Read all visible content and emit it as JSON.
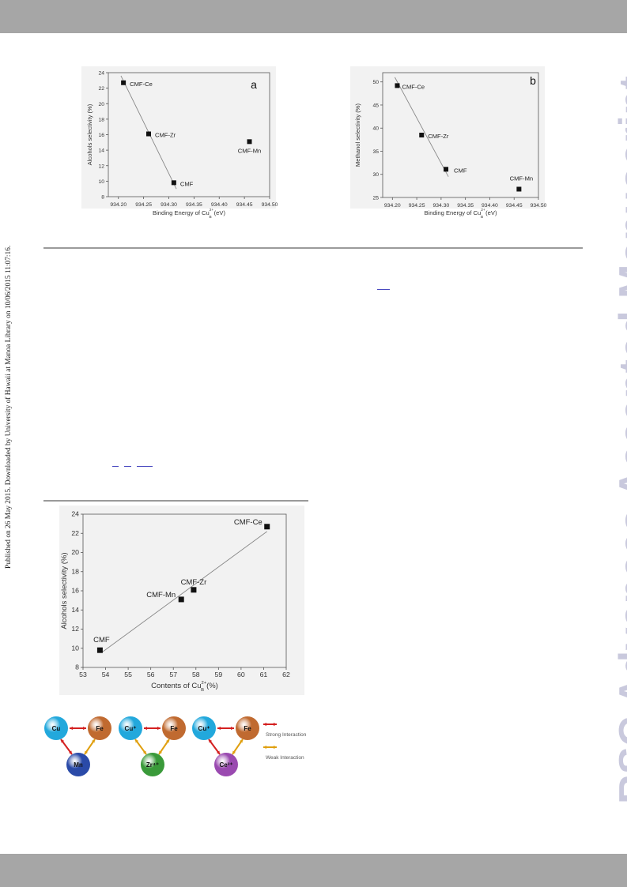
{
  "header_bar": "",
  "side_note": "Published on 26 May 2015. Downloaded by University of Hawaii at Manoa Library on 10/06/2015 11:07:16.",
  "watermark": "RSC Advances Accepted Manuscript",
  "colors": {
    "bars": "#a6a6a6",
    "watermark": "#c9c9dd",
    "strong_interaction": "#d42020",
    "weak_interaction": "#e0a010"
  },
  "chart_data": [
    {
      "type": "scatter",
      "panel_label": "a",
      "xlabel": "Binding Energy of Cu",
      "xlabel_sup": "2+",
      "xlabel_sub": "B",
      "xlabel_unit": "(eV)",
      "ylabel": "Alcohols selectivity (%)",
      "xlim": [
        934.18,
        934.5
      ],
      "ylim": [
        8,
        24
      ],
      "xticks": [
        "934.20",
        "934.25",
        "934.30",
        "934.35",
        "934.40",
        "934.45",
        "934.50"
      ],
      "yticks": [
        "8",
        "10",
        "12",
        "14",
        "16",
        "18",
        "20",
        "22",
        "24"
      ],
      "points": [
        {
          "label": "CMF-Ce",
          "x": 934.21,
          "y": 22.7
        },
        {
          "label": "CMF-Zr",
          "x": 934.26,
          "y": 16.1
        },
        {
          "label": "CMF",
          "x": 934.31,
          "y": 9.8
        },
        {
          "label": "CMF-Mn",
          "x": 934.46,
          "y": 15.1
        }
      ],
      "fit_line": {
        "x": [
          934.205,
          934.315
        ],
        "y": [
          23.6,
          9.0
        ]
      }
    },
    {
      "type": "scatter",
      "panel_label": "b",
      "xlabel": "Binding Energy of Cu",
      "xlabel_sup": "2+",
      "xlabel_sub": "B",
      "xlabel_unit": "(eV)",
      "ylabel": "Methanol selectivity (%)",
      "xlim": [
        934.18,
        934.5
      ],
      "ylim": [
        25,
        52
      ],
      "xticks": [
        "934.20",
        "934.25",
        "934.30",
        "934.35",
        "934.40",
        "934.45",
        "934.50"
      ],
      "yticks": [
        "25",
        "30",
        "35",
        "40",
        "45",
        "50"
      ],
      "points": [
        {
          "label": "CMF-Ce",
          "x": 934.21,
          "y": 49.2
        },
        {
          "label": "CMF-Zr",
          "x": 934.26,
          "y": 38.5
        },
        {
          "label": "CMF",
          "x": 934.31,
          "y": 31.1
        },
        {
          "label": "CMF-Mn",
          "x": 934.46,
          "y": 26.8
        }
      ],
      "fit_line": {
        "x": [
          934.205,
          934.315
        ],
        "y": [
          51.0,
          29.5
        ]
      }
    },
    {
      "type": "scatter",
      "panel_label": "",
      "xlabel": "Contents of Cu",
      "xlabel_sup": "2+",
      "xlabel_sub": "B",
      "xlabel_unit": "(%)",
      "ylabel": "Alcohols selectivity (%)",
      "xlim": [
        53,
        62
      ],
      "ylim": [
        8,
        24
      ],
      "xticks": [
        "53",
        "54",
        "55",
        "56",
        "57",
        "58",
        "59",
        "60",
        "61",
        "62"
      ],
      "yticks": [
        "8",
        "10",
        "12",
        "14",
        "16",
        "18",
        "20",
        "22",
        "24"
      ],
      "points": [
        {
          "label": "CMF",
          "x": 53.75,
          "y": 9.8
        },
        {
          "label": "CMF-Mn",
          "x": 57.35,
          "y": 15.1
        },
        {
          "label": "CMF-Zr",
          "x": 57.9,
          "y": 16.1
        },
        {
          "label": "CMF-Ce",
          "x": 61.15,
          "y": 22.7
        }
      ],
      "fit_line": {
        "x": [
          53.85,
          61.15
        ],
        "y": [
          9.6,
          22.2
        ]
      }
    }
  ],
  "scheme": {
    "groups": [
      {
        "nodes": [
          "Cu",
          "Fe",
          "Mn"
        ],
        "colors": [
          "#22a8dc",
          "#c06a30",
          "#2a4aa8"
        ],
        "links": [
          "strong",
          "strong",
          "weak"
        ]
      },
      {
        "nodes": [
          "Cu⁺",
          "Fe",
          "Zr⁴⁺"
        ],
        "colors": [
          "#22a8dc",
          "#c06a30",
          "#3a9a3a"
        ],
        "links": [
          "strong",
          "weak",
          "weak"
        ]
      },
      {
        "nodes": [
          "Cu⁺",
          "Fe",
          "Ce³⁺"
        ],
        "colors": [
          "#22a8dc",
          "#c06a30",
          "#9a4ab0"
        ],
        "links": [
          "strong",
          "strong",
          "weak"
        ]
      }
    ],
    "legend": {
      "strong": "Strong Interaction",
      "weak": "Weak Interaction"
    }
  }
}
